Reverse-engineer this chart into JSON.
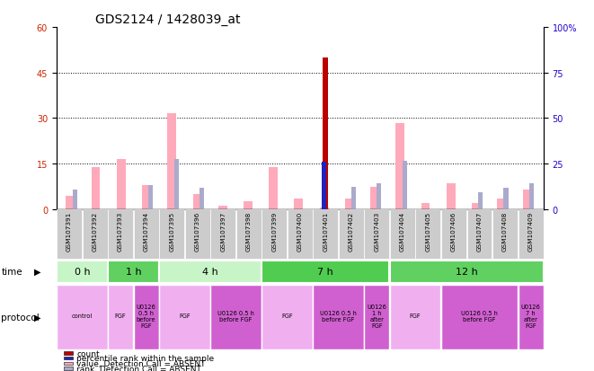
{
  "title": "GDS2124 / 1428039_at",
  "samples": [
    "GSM107391",
    "GSM107392",
    "GSM107393",
    "GSM107394",
    "GSM107395",
    "GSM107396",
    "GSM107397",
    "GSM107398",
    "GSM107399",
    "GSM107400",
    "GSM107401",
    "GSM107402",
    "GSM107403",
    "GSM107404",
    "GSM107405",
    "GSM107406",
    "GSM107407",
    "GSM107408",
    "GSM107409"
  ],
  "pink_values": [
    4.5,
    14.0,
    16.5,
    8.0,
    31.5,
    5.0,
    1.2,
    2.5,
    14.0,
    3.5,
    0.5,
    3.5,
    7.5,
    28.5,
    2.0,
    8.5,
    2.0,
    3.5,
    6.5
  ],
  "blue_rank_values": [
    6.5,
    0,
    0,
    8.0,
    16.5,
    7.0,
    0,
    0,
    0,
    0,
    0,
    7.5,
    8.5,
    16.0,
    0,
    0,
    5.5,
    7.0,
    8.5
  ],
  "count_values": [
    0,
    0,
    0,
    0,
    0,
    0,
    0,
    0,
    0,
    0,
    50.0,
    0,
    0,
    0,
    0,
    0,
    0,
    0,
    0
  ],
  "percentile_values": [
    0,
    0,
    0,
    0,
    0,
    0,
    0,
    0,
    0,
    0,
    26.0,
    0,
    0,
    0,
    0,
    0,
    0,
    0,
    0
  ],
  "time_groups": [
    {
      "label": "0 h",
      "start": 0,
      "end": 2,
      "color": "#c8f5c8"
    },
    {
      "label": "1 h",
      "start": 2,
      "end": 4,
      "color": "#60d060"
    },
    {
      "label": "4 h",
      "start": 4,
      "end": 8,
      "color": "#c8f5c8"
    },
    {
      "label": "7 h",
      "start": 8,
      "end": 13,
      "color": "#50cc50"
    },
    {
      "label": "12 h",
      "start": 13,
      "end": 19,
      "color": "#60d060"
    }
  ],
  "protocol_groups": [
    {
      "label": "control",
      "start": 0,
      "end": 2,
      "color": "#f0b0f0"
    },
    {
      "label": "FGF",
      "start": 2,
      "end": 3,
      "color": "#f0b0f0"
    },
    {
      "label": "U0126\n0.5 h\nbefore\nFGF",
      "start": 3,
      "end": 4,
      "color": "#d060d0"
    },
    {
      "label": "FGF",
      "start": 4,
      "end": 6,
      "color": "#f0b0f0"
    },
    {
      "label": "U0126 0.5 h\nbefore FGF",
      "start": 6,
      "end": 8,
      "color": "#d060d0"
    },
    {
      "label": "FGF",
      "start": 8,
      "end": 10,
      "color": "#f0b0f0"
    },
    {
      "label": "U0126 0.5 h\nbefore FGF",
      "start": 10,
      "end": 12,
      "color": "#d060d0"
    },
    {
      "label": "U0126\n1 h\nafter\nFGF",
      "start": 12,
      "end": 13,
      "color": "#d060d0"
    },
    {
      "label": "FGF",
      "start": 13,
      "end": 15,
      "color": "#f0b0f0"
    },
    {
      "label": "U0126 0.5 h\nbefore FGF",
      "start": 15,
      "end": 18,
      "color": "#d060d0"
    },
    {
      "label": "U0126\n7 h\nafter\nFGF",
      "start": 18,
      "end": 19,
      "color": "#d060d0"
    }
  ],
  "left_yticks": [
    0,
    15,
    30,
    45,
    60
  ],
  "right_yticks": [
    0,
    25,
    50,
    75,
    100
  ],
  "ylim_left": [
    0,
    60
  ],
  "ylim_right": [
    0,
    100
  ],
  "pink_color": "#ffaabb",
  "blue_color": "#aaaacc",
  "red_color": "#bb0000",
  "dark_blue_color": "#2222bb",
  "bg_color": "#ffffff",
  "axis_label_color_left": "#cc2200",
  "axis_label_color_right": "#2200cc",
  "sample_box_color": "#cccccc",
  "legend_items": [
    {
      "color": "#bb0000",
      "label": "count"
    },
    {
      "color": "#2222bb",
      "label": "percentile rank within the sample"
    },
    {
      "color": "#ffaabb",
      "label": "value, Detection Call = ABSENT"
    },
    {
      "color": "#aaaacc",
      "label": "rank, Detection Call = ABSENT"
    }
  ]
}
